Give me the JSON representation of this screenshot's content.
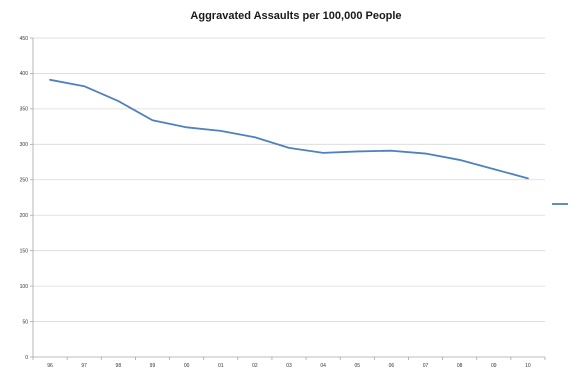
{
  "chart_data": {
    "type": "line",
    "title": "Aggravated Assaults per 100,000 People",
    "xlabel": "",
    "ylabel": "",
    "categories": [
      "96",
      "97",
      "98",
      "99",
      "00",
      "01",
      "02",
      "03",
      "04",
      "05",
      "06",
      "07",
      "08",
      "09",
      "10"
    ],
    "series": [
      {
        "name": "",
        "color": "#4f81bd",
        "values": [
          391,
          382,
          361,
          334,
          324,
          319,
          310,
          295,
          288,
          290,
          291,
          287,
          278,
          265,
          252
        ]
      }
    ],
    "ylim": [
      0,
      450
    ],
    "yticks": [
      0,
      50,
      100,
      150,
      200,
      250,
      300,
      350,
      400,
      450
    ],
    "yticklabels": [
      "0",
      "50",
      "100",
      "150",
      "200",
      "250",
      "300",
      "350",
      "400",
      "450"
    ],
    "grid": true,
    "legend": "right",
    "gridColor": "#d9d9d9",
    "axisColor": "#a6a6a6"
  }
}
